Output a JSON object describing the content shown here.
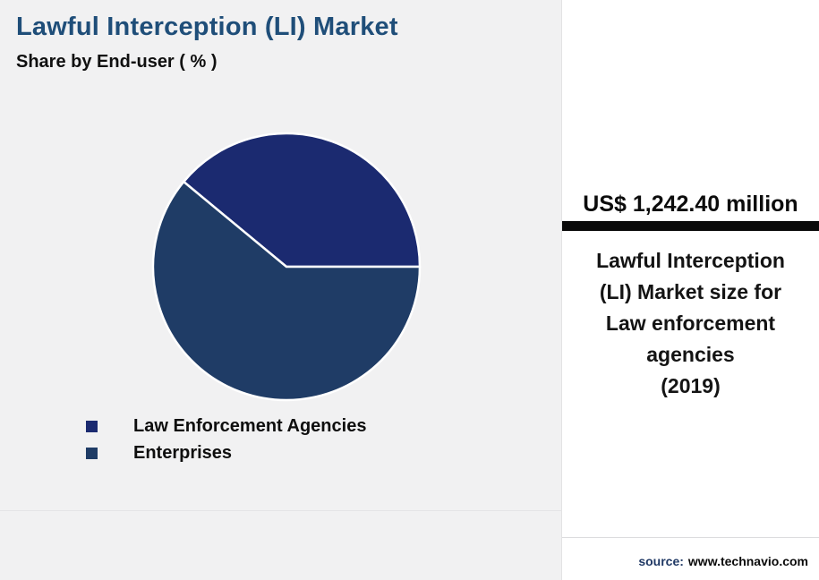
{
  "header": {
    "title": "Lawful Interception (LI) Market",
    "subtitle": "Share by End-user ( % )",
    "title_color": "#1f4e79"
  },
  "chart_data": {
    "type": "pie",
    "title": "Lawful Interception (LI) Market",
    "subtitle": "Share by End-user ( % )",
    "unit": "%",
    "start_angle_deg": 0,
    "direction": "counterclockwise",
    "slices": [
      {
        "label": "Law Enforcement Agencies",
        "value": 39,
        "color": "#1b2a70"
      },
      {
        "label": "Enterprises",
        "value": 61,
        "color": "#1f3c66"
      }
    ],
    "legend_position": "bottom-left",
    "slice_border_color": "#ffffff"
  },
  "callout": {
    "stat_value": "US$ 1,242.40 million",
    "description_lines": [
      "Lawful Interception",
      "(LI) Market size for",
      "Law enforcement",
      "agencies",
      "(2019)"
    ],
    "bar_color": "#0a0a0a"
  },
  "footer": {
    "source_label": "source:",
    "source_url": "www.technavio.com"
  }
}
